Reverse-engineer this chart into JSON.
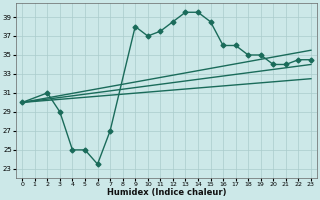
{
  "xlabel": "Humidex (Indice chaleur)",
  "bg_color": "#cce8e8",
  "grid_color": "#aacccc",
  "line_color": "#1a6b5a",
  "xlim": [
    -0.5,
    23.5
  ],
  "ylim": [
    22,
    40.5
  ],
  "yticks": [
    23,
    25,
    27,
    29,
    31,
    33,
    35,
    37,
    39
  ],
  "xticks": [
    0,
    1,
    2,
    3,
    4,
    5,
    6,
    7,
    8,
    9,
    10,
    11,
    12,
    13,
    14,
    15,
    16,
    17,
    18,
    19,
    20,
    21,
    22,
    23
  ],
  "series": [
    {
      "x": [
        0,
        2,
        3,
        4,
        5,
        6,
        7,
        9,
        10,
        11,
        12,
        13,
        14,
        15,
        16,
        17,
        18,
        19,
        20,
        21,
        22,
        23
      ],
      "y": [
        30,
        31,
        29,
        25,
        25,
        23.5,
        27,
        38,
        37,
        37.5,
        38.5,
        39.5,
        39.5,
        38.5,
        36,
        36,
        35,
        35,
        34,
        34,
        34.5,
        34.5
      ],
      "marker": true
    },
    {
      "x": [
        0,
        23
      ],
      "y": [
        30,
        35.5
      ],
      "marker": false
    },
    {
      "x": [
        0,
        23
      ],
      "y": [
        30,
        34
      ],
      "marker": false
    },
    {
      "x": [
        0,
        23
      ],
      "y": [
        30,
        32.5
      ],
      "marker": false
    }
  ],
  "markersize": 2.5,
  "linewidth": 1.0
}
